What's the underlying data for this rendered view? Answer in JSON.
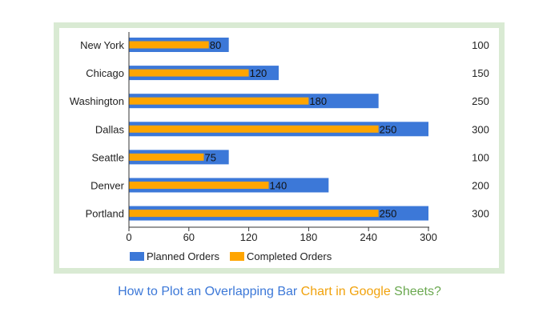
{
  "chart_data": {
    "type": "bar",
    "orientation": "horizontal",
    "layout": "overlapping",
    "categories": [
      "New York",
      "Chicago",
      "Washington",
      "Dallas",
      "Seattle",
      "Denver",
      "Portland"
    ],
    "series": [
      {
        "name": "Planned Orders",
        "values": [
          100,
          150,
          250,
          300,
          100,
          200,
          300
        ],
        "color": "#3c78d8"
      },
      {
        "name": "Completed Orders",
        "values": [
          80,
          120,
          180,
          250,
          75,
          140,
          250
        ],
        "color": "#ffa500"
      }
    ],
    "xticks": [
      "0",
      "60",
      "120",
      "180",
      "240",
      "300"
    ],
    "xlim": [
      0,
      300
    ],
    "right_labels": [
      "100",
      "150",
      "250",
      "300",
      "100",
      "200",
      "300"
    ],
    "value_labels": [
      "80",
      "120",
      "180",
      "250",
      "75",
      "140",
      "250"
    ],
    "legend_position": "bottom",
    "grid": false
  },
  "caption": {
    "parts": [
      {
        "text": "How to Plot an Overlapping Bar",
        "color": "#3c78d8"
      },
      {
        "text": " Chart in Google",
        "color": "#f1a20c"
      },
      {
        "text": " Sheets?",
        "color": "#6aa84f"
      }
    ]
  }
}
